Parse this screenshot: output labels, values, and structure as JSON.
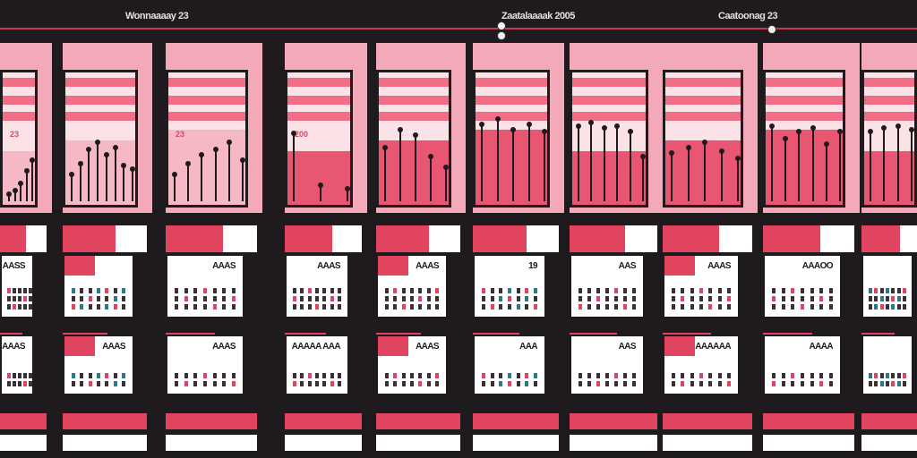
{
  "header": {
    "labels": [
      {
        "text": "Wonnaaaay 23"
      },
      {
        "text": "Zaatalaaaak 2005"
      },
      {
        "text": "Caatoonag 23"
      }
    ]
  },
  "charts": [
    {
      "label": "23",
      "stems": [
        8,
        12,
        20,
        34,
        46
      ]
    },
    {
      "label": "",
      "stems": [
        30,
        42,
        58,
        66,
        52,
        60,
        40,
        36
      ]
    },
    {
      "label": "23",
      "stems": [
        30,
        42,
        52,
        58,
        66,
        46
      ]
    },
    {
      "label": "200",
      "stems": [
        76,
        18,
        14
      ]
    },
    {
      "label": "",
      "stems": [
        60,
        80,
        74,
        50,
        38
      ]
    },
    {
      "label": "",
      "stems": [
        86,
        92,
        80,
        86,
        78
      ]
    },
    {
      "label": "",
      "stems": [
        84,
        88,
        82,
        84,
        78,
        50
      ]
    },
    {
      "label": "",
      "stems": [
        54,
        60,
        66,
        56,
        48
      ]
    },
    {
      "label": "",
      "stems": [
        84,
        70,
        78,
        82,
        64,
        78
      ]
    },
    {
      "label": "",
      "stems": [
        78,
        82,
        84,
        80
      ]
    }
  ],
  "calendars_row1": [
    {
      "title": "AASS"
    },
    {
      "title": ""
    },
    {
      "title": "AAAS"
    },
    {
      "title": "AAAS"
    },
    {
      "title": "AAAS"
    },
    {
      "title": "19"
    },
    {
      "title": "AAS"
    },
    {
      "title": "AAAS"
    },
    {
      "title": "AAAOO"
    },
    {
      "title": ""
    }
  ],
  "calendars_row2": [
    {
      "title": "AAAS"
    },
    {
      "title": "AAAS"
    },
    {
      "title": "AAAS"
    },
    {
      "title": "AAAAA AAA"
    },
    {
      "title": "AAAS"
    },
    {
      "title": "AAA"
    },
    {
      "title": "AAS"
    },
    {
      "title": "AAAAAA"
    },
    {
      "title": "AAAA"
    },
    {
      "title": ""
    }
  ],
  "colors": {
    "background": "#1f1a1d",
    "accent": "#e0445f",
    "pink_light": "#fbe2e7",
    "pink_mid": "#f4a9b8",
    "teal": "#2a7a8a"
  }
}
